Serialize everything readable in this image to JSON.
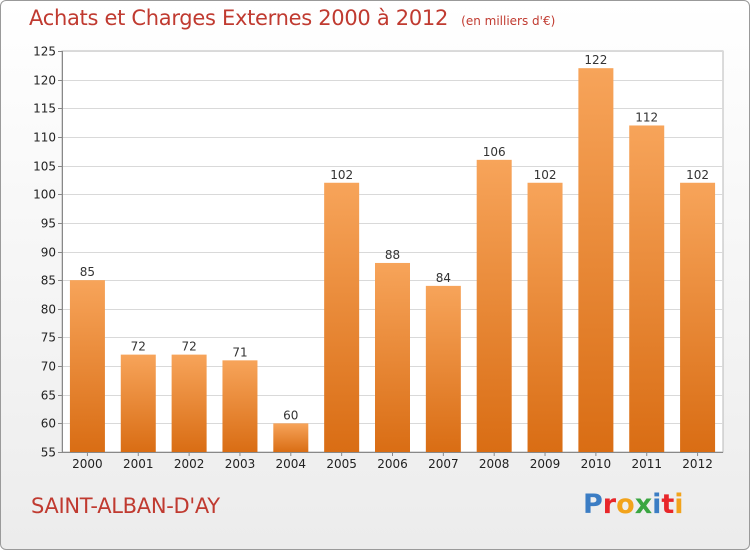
{
  "chart_data": {
    "type": "bar",
    "title": "Achats et Charges Externes 2000 à 2012",
    "unit_note": "(en milliers d'€)",
    "categories": [
      "2000",
      "2001",
      "2002",
      "2003",
      "2004",
      "2005",
      "2006",
      "2007",
      "2008",
      "2009",
      "2010",
      "2011",
      "2012"
    ],
    "values": [
      85,
      72,
      72,
      71,
      60,
      102,
      88,
      84,
      106,
      102,
      122,
      112,
      102
    ],
    "ylim": [
      55,
      125
    ],
    "yticks": [
      55,
      60,
      65,
      70,
      75,
      80,
      85,
      90,
      95,
      100,
      105,
      110,
      115,
      120,
      125
    ],
    "xlabel": "",
    "ylabel": "",
    "grid": true,
    "bar_color": "#f0892a",
    "bar_color_top": "#f7a45a",
    "bar_color_bottom": "#d96d14"
  },
  "footer": {
    "commune": "SAINT-ALBAN-D'AY",
    "logo": {
      "letters": [
        "P",
        "r",
        "o",
        "x",
        "i",
        "t",
        "i"
      ],
      "colors": [
        "#3b7dc4",
        "#e8262a",
        "#f2a31b",
        "#3aa641",
        "#3b7dc4",
        "#e8262a",
        "#f2a31b"
      ]
    }
  }
}
